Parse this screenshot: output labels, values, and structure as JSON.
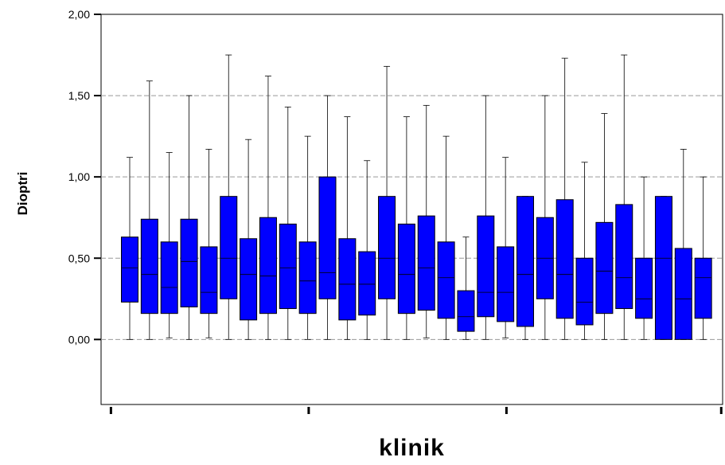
{
  "chart_data": {
    "type": "box",
    "xlabel": "klinik",
    "ylabel": "Dioptri",
    "ylim": [
      -0.4,
      2.0
    ],
    "yticks": [
      {
        "value": 0.0,
        "label": "0,00"
      },
      {
        "value": 0.5,
        "label": "0,50"
      },
      {
        "value": 1.0,
        "label": "1,00"
      },
      {
        "value": 1.5,
        "label": "1,50"
      },
      {
        "value": 2.0,
        "label": "2,00"
      }
    ],
    "grid": {
      "horizontal": true,
      "style": "dashed"
    },
    "box_color": "#0000ff",
    "boxes": [
      {
        "min": 0.0,
        "q1": 0.23,
        "median": 0.44,
        "q3": 0.63,
        "max": 1.12
      },
      {
        "min": 0.0,
        "q1": 0.16,
        "median": 0.4,
        "q3": 0.74,
        "max": 1.59
      },
      {
        "min": 0.01,
        "q1": 0.16,
        "median": 0.32,
        "q3": 0.6,
        "max": 1.15
      },
      {
        "min": 0.0,
        "q1": 0.2,
        "median": 0.48,
        "q3": 0.74,
        "max": 1.5
      },
      {
        "min": 0.01,
        "q1": 0.16,
        "median": 0.29,
        "q3": 0.57,
        "max": 1.17
      },
      {
        "min": 0.0,
        "q1": 0.25,
        "median": 0.5,
        "q3": 0.88,
        "max": 1.75
      },
      {
        "min": 0.0,
        "q1": 0.12,
        "median": 0.4,
        "q3": 0.62,
        "max": 1.23
      },
      {
        "min": 0.0,
        "q1": 0.16,
        "median": 0.39,
        "q3": 0.75,
        "max": 1.62
      },
      {
        "min": 0.0,
        "q1": 0.19,
        "median": 0.44,
        "q3": 0.71,
        "max": 1.43
      },
      {
        "min": 0.0,
        "q1": 0.16,
        "median": 0.36,
        "q3": 0.6,
        "max": 1.25
      },
      {
        "min": 0.0,
        "q1": 0.25,
        "median": 0.41,
        "q3": 1.0,
        "max": 1.5
      },
      {
        "min": 0.0,
        "q1": 0.12,
        "median": 0.34,
        "q3": 0.62,
        "max": 1.37
      },
      {
        "min": 0.0,
        "q1": 0.15,
        "median": 0.34,
        "q3": 0.54,
        "max": 1.1
      },
      {
        "min": 0.0,
        "q1": 0.25,
        "median": 0.5,
        "q3": 0.88,
        "max": 1.68
      },
      {
        "min": 0.0,
        "q1": 0.16,
        "median": 0.4,
        "q3": 0.71,
        "max": 1.37
      },
      {
        "min": 0.01,
        "q1": 0.18,
        "median": 0.44,
        "q3": 0.76,
        "max": 1.44
      },
      {
        "min": 0.0,
        "q1": 0.13,
        "median": 0.38,
        "q3": 0.6,
        "max": 1.25
      },
      {
        "min": 0.0,
        "q1": 0.05,
        "median": 0.14,
        "q3": 0.3,
        "max": 0.63
      },
      {
        "min": 0.0,
        "q1": 0.14,
        "median": 0.29,
        "q3": 0.76,
        "max": 1.5
      },
      {
        "min": 0.01,
        "q1": 0.11,
        "median": 0.29,
        "q3": 0.57,
        "max": 1.12
      },
      {
        "min": 0.0,
        "q1": 0.08,
        "median": 0.4,
        "q3": 0.88,
        "max": 0.88
      },
      {
        "min": 0.0,
        "q1": 0.25,
        "median": 0.5,
        "q3": 0.75,
        "max": 1.5
      },
      {
        "min": 0.0,
        "q1": 0.13,
        "median": 0.4,
        "q3": 0.86,
        "max": 1.73
      },
      {
        "min": 0.0,
        "q1": 0.09,
        "median": 0.23,
        "q3": 0.5,
        "max": 1.09
      },
      {
        "min": 0.0,
        "q1": 0.16,
        "median": 0.42,
        "q3": 0.72,
        "max": 1.39
      },
      {
        "min": 0.0,
        "q1": 0.19,
        "median": 0.38,
        "q3": 0.83,
        "max": 1.75
      },
      {
        "min": 0.0,
        "q1": 0.13,
        "median": 0.25,
        "q3": 0.5,
        "max": 1.0
      },
      {
        "min": 0.0,
        "q1": 0.0,
        "median": 0.5,
        "q3": 0.88,
        "max": 0.88
      },
      {
        "min": 0.0,
        "q1": 0.0,
        "median": 0.25,
        "q3": 0.56,
        "max": 1.17
      },
      {
        "min": 0.0,
        "q1": 0.13,
        "median": 0.38,
        "q3": 0.5,
        "max": 1.0
      }
    ],
    "x_major_ticks_every": 10
  }
}
